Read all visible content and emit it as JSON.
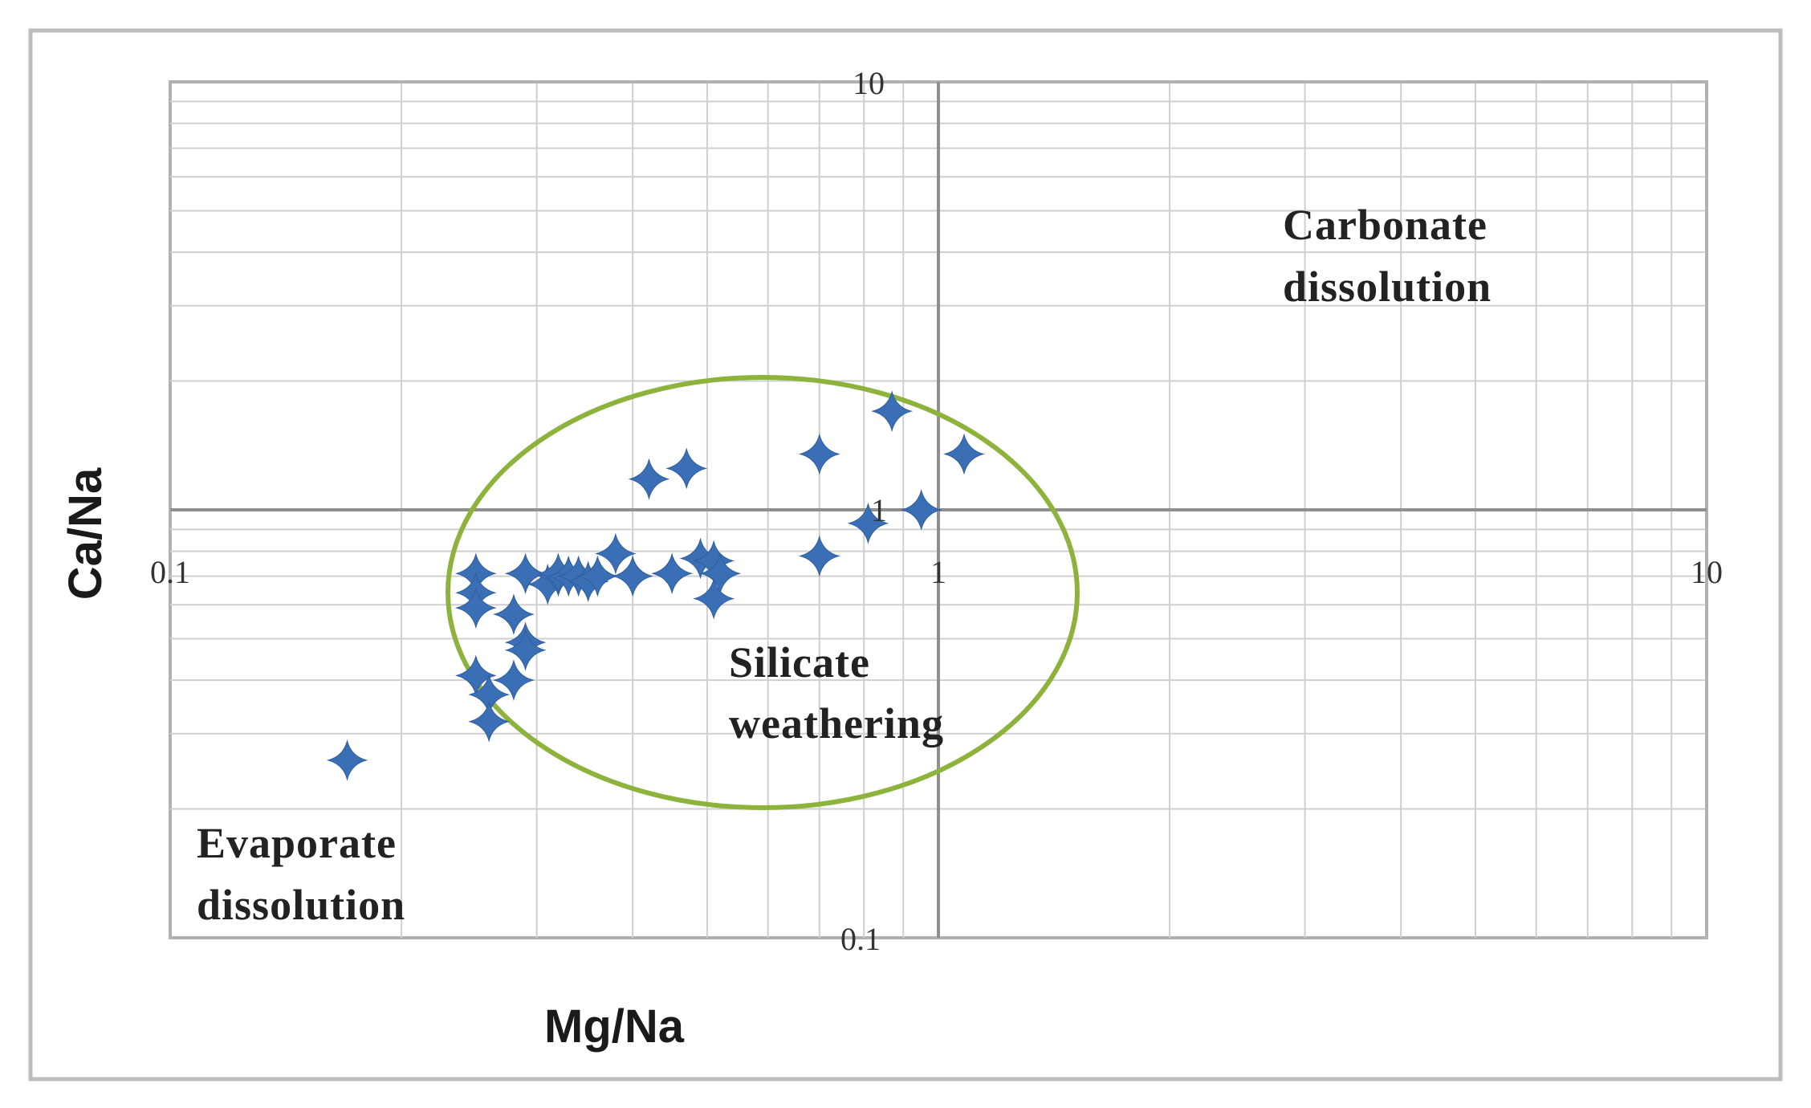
{
  "chart_data": {
    "type": "scatter",
    "xlabel": "Mg/Na",
    "ylabel": "Ca/Na",
    "xscale": "log",
    "yscale": "log",
    "xlim": [
      0.1,
      10
    ],
    "ylim": [
      0.1,
      10
    ],
    "grid": true,
    "x_tick_labels": [
      "0.1",
      "1",
      "10"
    ],
    "y_tick_labels": [
      "0.1",
      "1",
      "10"
    ],
    "marker": "diamond",
    "marker_color": "#3b6fb5",
    "envelope_color": "#8db33c",
    "annotations": [
      {
        "lines": [
          "Carbonate",
          "dissolution"
        ]
      },
      {
        "lines": [
          "Silicate",
          "weathering"
        ]
      },
      {
        "lines": [
          "Evaporate",
          "dissolution"
        ]
      }
    ],
    "points": [
      {
        "x": 0.87,
        "y": 1.7
      },
      {
        "x": 0.7,
        "y": 1.35
      },
      {
        "x": 1.08,
        "y": 1.35
      },
      {
        "x": 0.47,
        "y": 1.25
      },
      {
        "x": 0.42,
        "y": 1.18
      },
      {
        "x": 0.95,
        "y": 1.0
      },
      {
        "x": 0.81,
        "y": 0.93
      },
      {
        "x": 0.38,
        "y": 0.79
      },
      {
        "x": 0.49,
        "y": 0.77
      },
      {
        "x": 0.7,
        "y": 0.78
      },
      {
        "x": 0.51,
        "y": 0.76
      },
      {
        "x": 0.29,
        "y": 0.71
      },
      {
        "x": 0.31,
        "y": 0.67
      },
      {
        "x": 0.45,
        "y": 0.71
      },
      {
        "x": 0.32,
        "y": 0.7
      },
      {
        "x": 0.32,
        "y": 0.71
      },
      {
        "x": 0.33,
        "y": 0.7
      },
      {
        "x": 0.34,
        "y": 0.7
      },
      {
        "x": 0.35,
        "y": 0.68
      },
      {
        "x": 0.36,
        "y": 0.7
      },
      {
        "x": 0.4,
        "y": 0.7
      },
      {
        "x": 0.52,
        "y": 0.71
      },
      {
        "x": 0.51,
        "y": 0.62
      },
      {
        "x": 0.25,
        "y": 0.71
      },
      {
        "x": 0.25,
        "y": 0.64
      },
      {
        "x": 0.25,
        "y": 0.59
      },
      {
        "x": 0.28,
        "y": 0.57
      },
      {
        "x": 0.29,
        "y": 0.49
      },
      {
        "x": 0.29,
        "y": 0.47
      },
      {
        "x": 0.25,
        "y": 0.41
      },
      {
        "x": 0.28,
        "y": 0.4
      },
      {
        "x": 0.26,
        "y": 0.37
      },
      {
        "x": 0.26,
        "y": 0.32
      },
      {
        "x": 0.17,
        "y": 0.26
      }
    ]
  }
}
